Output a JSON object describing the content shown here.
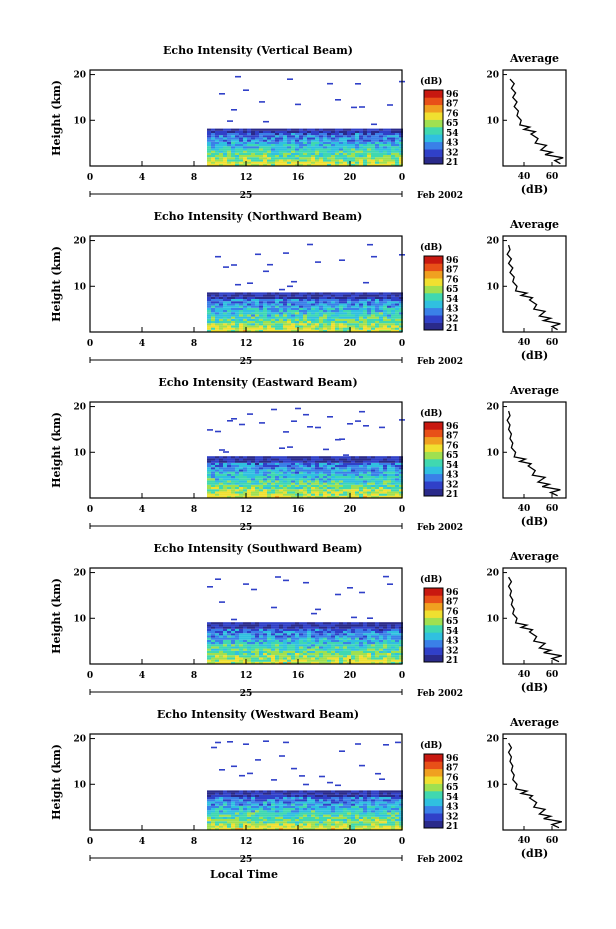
{
  "chart_data": [
    {
      "type": "heatmap",
      "title": "Echo Intensity (Vertical Beam)",
      "ylabel": "Height (km)",
      "colorbar": {
        "unit": "(dB)",
        "ticks": [
          "96",
          "87",
          "76",
          "65",
          "54",
          "43",
          "32",
          "21"
        ]
      },
      "x_ticks": [
        "0",
        "4",
        "8",
        "12",
        "16",
        "20",
        "0"
      ],
      "y_ticks": [
        "20",
        "10"
      ],
      "ylim": [
        0,
        21
      ],
      "xlim": [
        0,
        24
      ],
      "date_day": "25",
      "date_month_year": "Feb 2002",
      "data_start_hour": 9,
      "echo_top_km": 8.5,
      "average_profile": {
        "title": "Average",
        "xlabel": "(dB)",
        "x_ticks": [
          "40",
          "60"
        ],
        "y_ticks": [
          "20",
          "10"
        ],
        "xlim": [
          25,
          70
        ],
        "points": [
          [
            30,
            19
          ],
          [
            33,
            18
          ],
          [
            31,
            17
          ],
          [
            34,
            16
          ],
          [
            32,
            15
          ],
          [
            35,
            14
          ],
          [
            33,
            13
          ],
          [
            36,
            12
          ],
          [
            35,
            11
          ],
          [
            38,
            10
          ],
          [
            37,
            9
          ],
          [
            44,
            8.5
          ],
          [
            40,
            8
          ],
          [
            48,
            7.5
          ],
          [
            45,
            7
          ],
          [
            50,
            6
          ],
          [
            48,
            5
          ],
          [
            56,
            4.5
          ],
          [
            52,
            3.5
          ],
          [
            60,
            3
          ],
          [
            55,
            2.5
          ],
          [
            68,
            1.8
          ],
          [
            62,
            1.2
          ],
          [
            66,
            0.5
          ]
        ]
      }
    },
    {
      "type": "heatmap",
      "title": "Echo Intensity (Northward Beam)",
      "ylabel": "Height (km)",
      "colorbar": {
        "unit": "(dB)",
        "ticks": [
          "96",
          "87",
          "76",
          "65",
          "54",
          "43",
          "32",
          "21"
        ]
      },
      "x_ticks": [
        "0",
        "4",
        "8",
        "12",
        "16",
        "20",
        "0"
      ],
      "y_ticks": [
        "20",
        "10"
      ],
      "ylim": [
        0,
        21
      ],
      "xlim": [
        0,
        24
      ],
      "date_day": "25",
      "date_month_year": "Feb 2002",
      "data_start_hour": 9,
      "echo_top_km": 9.0,
      "average_profile": {
        "title": "Average",
        "xlabel": "(dB)",
        "x_ticks": [
          "40",
          "60"
        ],
        "y_ticks": [
          "20",
          "10"
        ],
        "xlim": [
          25,
          70
        ],
        "points": [
          [
            29,
            19
          ],
          [
            30,
            18
          ],
          [
            28,
            17
          ],
          [
            31,
            16
          ],
          [
            29,
            15
          ],
          [
            32,
            14
          ],
          [
            30,
            13
          ],
          [
            33,
            12
          ],
          [
            32,
            11
          ],
          [
            35,
            10
          ],
          [
            34,
            9
          ],
          [
            42,
            8.5
          ],
          [
            38,
            8
          ],
          [
            46,
            7.5
          ],
          [
            44,
            7
          ],
          [
            49,
            6
          ],
          [
            47,
            5
          ],
          [
            55,
            4.5
          ],
          [
            51,
            3.5
          ],
          [
            59,
            3
          ],
          [
            54,
            2.5
          ],
          [
            66,
            1.8
          ],
          [
            60,
            1.2
          ],
          [
            64,
            0.5
          ]
        ]
      }
    },
    {
      "type": "heatmap",
      "title": "Echo Intensity (Eastward Beam)",
      "ylabel": "Height (km)",
      "colorbar": {
        "unit": "(dB)",
        "ticks": [
          "96",
          "87",
          "76",
          "65",
          "54",
          "43",
          "32",
          "21"
        ]
      },
      "x_ticks": [
        "0",
        "4",
        "8",
        "12",
        "16",
        "20",
        "0"
      ],
      "y_ticks": [
        "20",
        "10"
      ],
      "ylim": [
        0,
        21
      ],
      "xlim": [
        0,
        24
      ],
      "date_day": "25",
      "date_month_year": "Feb 2002",
      "data_start_hour": 9,
      "echo_top_km": 9.5,
      "average_profile": {
        "title": "Average",
        "xlabel": "(dB)",
        "x_ticks": [
          "40",
          "60"
        ],
        "y_ticks": [
          "20",
          "10"
        ],
        "xlim": [
          25,
          70
        ],
        "points": [
          [
            29,
            19
          ],
          [
            30,
            18
          ],
          [
            28,
            17
          ],
          [
            30,
            16
          ],
          [
            29,
            15
          ],
          [
            31,
            14
          ],
          [
            30,
            13
          ],
          [
            32,
            12
          ],
          [
            31,
            11
          ],
          [
            34,
            10
          ],
          [
            33,
            9
          ],
          [
            41,
            8.5
          ],
          [
            37,
            8
          ],
          [
            45,
            7.5
          ],
          [
            43,
            7
          ],
          [
            48,
            6
          ],
          [
            46,
            5
          ],
          [
            55,
            4.5
          ],
          [
            50,
            3.5
          ],
          [
            58,
            3
          ],
          [
            53,
            2.5
          ],
          [
            66,
            1.8
          ],
          [
            59,
            1.2
          ],
          [
            64,
            0.5
          ]
        ]
      }
    },
    {
      "type": "heatmap",
      "title": "Echo Intensity (Southward Beam)",
      "ylabel": "Height (km)",
      "colorbar": {
        "unit": "(dB)",
        "ticks": [
          "96",
          "87",
          "76",
          "65",
          "54",
          "43",
          "32",
          "21"
        ]
      },
      "x_ticks": [
        "0",
        "4",
        "8",
        "12",
        "16",
        "20",
        "0"
      ],
      "y_ticks": [
        "20",
        "10"
      ],
      "ylim": [
        0,
        21
      ],
      "xlim": [
        0,
        24
      ],
      "date_day": "25",
      "date_month_year": "Feb 2002",
      "data_start_hour": 9,
      "echo_top_km": 9.5,
      "average_profile": {
        "title": "Average",
        "xlabel": "(dB)",
        "x_ticks": [
          "40",
          "60"
        ],
        "y_ticks": [
          "20",
          "10"
        ],
        "xlim": [
          25,
          70
        ],
        "points": [
          [
            29,
            19
          ],
          [
            31,
            18
          ],
          [
            29,
            17
          ],
          [
            31,
            16
          ],
          [
            30,
            15
          ],
          [
            32,
            14
          ],
          [
            31,
            13
          ],
          [
            33,
            12
          ],
          [
            32,
            11
          ],
          [
            35,
            10
          ],
          [
            34,
            9
          ],
          [
            42,
            8.5
          ],
          [
            38,
            8
          ],
          [
            46,
            7.5
          ],
          [
            44,
            7
          ],
          [
            49,
            6
          ],
          [
            47,
            5
          ],
          [
            55,
            4.5
          ],
          [
            51,
            3.5
          ],
          [
            59,
            3
          ],
          [
            54,
            2.5
          ],
          [
            67,
            1.8
          ],
          [
            60,
            1.2
          ],
          [
            65,
            0.5
          ]
        ]
      }
    },
    {
      "type": "heatmap",
      "title": "Echo Intensity (Westward Beam)",
      "ylabel": "Height (km)",
      "colorbar": {
        "unit": "(dB)",
        "ticks": [
          "96",
          "87",
          "76",
          "65",
          "54",
          "43",
          "32",
          "21"
        ]
      },
      "x_ticks": [
        "0",
        "4",
        "8",
        "12",
        "16",
        "20",
        "0"
      ],
      "y_ticks": [
        "20",
        "10"
      ],
      "ylim": [
        0,
        21
      ],
      "xlim": [
        0,
        24
      ],
      "date_day": "25",
      "date_month_year": "Feb 2002",
      "data_start_hour": 9,
      "echo_top_km": 9.0,
      "xlabel": "Local Time",
      "average_profile": {
        "title": "Average",
        "xlabel": "(dB)",
        "x_ticks": [
          "40",
          "60"
        ],
        "y_ticks": [
          "20",
          "10"
        ],
        "xlim": [
          25,
          70
        ],
        "points": [
          [
            29,
            19
          ],
          [
            31,
            18
          ],
          [
            29,
            17
          ],
          [
            31,
            16
          ],
          [
            30,
            15
          ],
          [
            32,
            14
          ],
          [
            31,
            13
          ],
          [
            33,
            12
          ],
          [
            32,
            11
          ],
          [
            35,
            10
          ],
          [
            34,
            9
          ],
          [
            42,
            8.5
          ],
          [
            38,
            8
          ],
          [
            46,
            7.5
          ],
          [
            44,
            7
          ],
          [
            49,
            6
          ],
          [
            47,
            5
          ],
          [
            55,
            4.5
          ],
          [
            51,
            3.5
          ],
          [
            59,
            3
          ],
          [
            54,
            2.5
          ],
          [
            67,
            1.8
          ],
          [
            60,
            1.2
          ],
          [
            65,
            0.5
          ]
        ]
      }
    }
  ],
  "colormap": [
    "#2a2a8a",
    "#3040c8",
    "#3a80e8",
    "#30c0e0",
    "#40d8b0",
    "#a0e050",
    "#f0e030",
    "#f0a020",
    "#e85018",
    "#c81810"
  ]
}
